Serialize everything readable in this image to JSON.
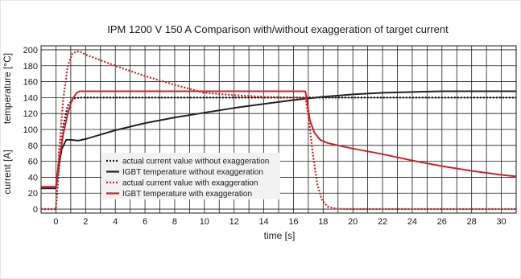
{
  "chart_data": {
    "type": "line",
    "title": "IPM 1200 V 150 A Comparison with/without exaggeration of target current",
    "xlabel": "time [s]",
    "ylabel_left": "current [A]",
    "ylabel_right": "temperature [°C]",
    "xlim": [
      -1,
      31
    ],
    "ylim": [
      -5,
      205
    ],
    "x_ticks": [
      0,
      2,
      4,
      6,
      8,
      10,
      12,
      14,
      16,
      18,
      20,
      22,
      24,
      26,
      28,
      30
    ],
    "y_ticks": [
      0,
      20,
      40,
      60,
      80,
      100,
      120,
      140,
      160,
      180,
      200
    ],
    "grid": true,
    "legend_position": "lower-left",
    "series": [
      {
        "name": "actual current value without exaggeration",
        "color": "#1a1a1a",
        "style": "dotted",
        "x": [
          -1,
          0,
          0.2,
          0.5,
          0.8,
          1.2,
          1.6,
          31
        ],
        "y": [
          0,
          0,
          50,
          105,
          130,
          139,
          140,
          140
        ]
      },
      {
        "name": "IGBT temperature without exaggeration",
        "color": "#222222",
        "style": "solid",
        "x": [
          -1,
          0,
          0.2,
          0.4,
          0.7,
          1.0,
          1.5,
          2.0,
          4,
          6,
          8,
          10,
          12,
          14,
          16,
          18,
          20,
          22,
          24,
          26,
          28,
          30,
          31
        ],
        "y": [
          26,
          26,
          55,
          76,
          87,
          87,
          86,
          88,
          99,
          108,
          115,
          121,
          127,
          132,
          137,
          141,
          144,
          146,
          147,
          148,
          148,
          148,
          148
        ]
      },
      {
        "name": "actual current value with exaggeration",
        "color": "#cc2229",
        "style": "dotted",
        "x": [
          -1,
          0,
          0.2,
          0.5,
          0.8,
          1.1,
          1.4,
          1.7,
          2,
          4,
          6,
          8,
          10,
          12,
          14,
          16,
          16.8,
          17.0,
          17.3,
          17.6,
          17.9,
          18.3,
          18.8,
          19.5,
          31
        ],
        "y": [
          0,
          0,
          70,
          140,
          180,
          195,
          198,
          197,
          194,
          180,
          167,
          156,
          146,
          143,
          141,
          140,
          140,
          118,
          70,
          32,
          12,
          3,
          1,
          0,
          0
        ]
      },
      {
        "name": "IGBT temperature with exaggeration",
        "color": "#cc2229",
        "style": "solid",
        "x": [
          -1,
          0,
          0.2,
          0.5,
          0.8,
          1.1,
          1.4,
          1.6,
          16.8,
          16.9,
          17.1,
          17.4,
          17.8,
          18.3,
          19,
          20,
          22,
          24,
          26,
          28,
          30,
          31
        ],
        "y": [
          28,
          28,
          60,
          95,
          120,
          138,
          146,
          148,
          148,
          138,
          112,
          96,
          87,
          83,
          80,
          76,
          69,
          61,
          54,
          48,
          43,
          41
        ]
      }
    ]
  }
}
